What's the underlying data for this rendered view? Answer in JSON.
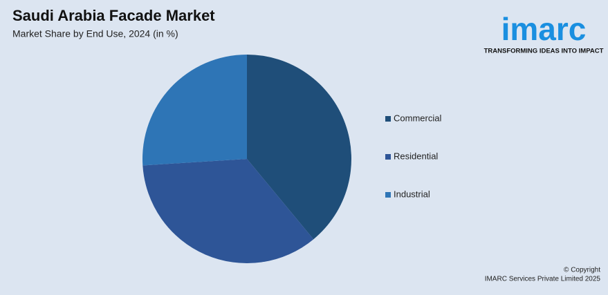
{
  "chart_data": {
    "type": "pie",
    "title": "Saudi Arabia Facade Market",
    "subtitle": "Market Share by End Use, 2024 (in %)",
    "categories": [
      "Commercial",
      "Residential",
      "Industrial"
    ],
    "values": [
      39,
      35,
      26
    ],
    "colors": [
      "#1f4e79",
      "#2e5597",
      "#2e75b6"
    ],
    "legend": "right"
  },
  "brand": {
    "logo": "imarc",
    "tagline": "TRANSFORMING IDEAS INTO IMPACT"
  },
  "footer": {
    "copyright": "© Copyright",
    "company": "IMARC Services Private Limited 2025"
  }
}
